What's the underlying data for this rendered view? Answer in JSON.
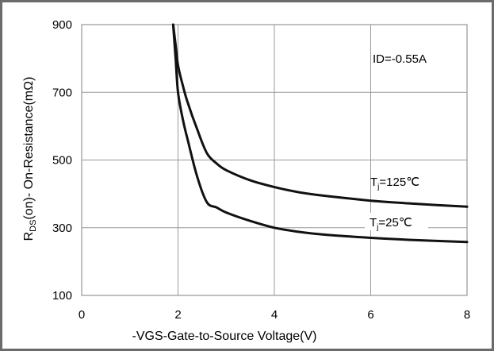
{
  "chart_data": {
    "type": "line",
    "title": "",
    "xlabel": "-VGS-Gate-to-Source  Voltage(V)",
    "ylabel_main": "R",
    "ylabel_sub": "DS",
    "ylabel_rest": "(on)- On-Resistance(mΩ)",
    "xlim": [
      0,
      8
    ],
    "ylim": [
      100,
      900
    ],
    "xticks": [
      "0",
      "2",
      "4",
      "6",
      "8"
    ],
    "yticks": [
      "100",
      "300",
      "500",
      "700",
      "900"
    ],
    "grid": true,
    "annotation": "ID=-0.55A",
    "series": [
      {
        "label_main": "T",
        "label_sub": "j",
        "label_rest": "=125℃",
        "color": "#111111",
        "x": [
          1.9,
          1.95,
          2.0,
          2.1,
          2.2,
          2.4,
          2.6,
          2.8,
          3.0,
          3.5,
          4.0,
          4.5,
          5.0,
          6.0,
          7.0,
          8.0
        ],
        "y": [
          900,
          840,
          780,
          720,
          670,
          590,
          520,
          490,
          470,
          440,
          420,
          405,
          395,
          380,
          370,
          362
        ]
      },
      {
        "label_main": "T",
        "label_sub": "j",
        "label_rest": "=25℃",
        "color": "#111111",
        "x": [
          1.9,
          1.95,
          2.0,
          2.1,
          2.2,
          2.4,
          2.6,
          2.8,
          3.0,
          3.5,
          4.0,
          4.5,
          5.0,
          6.0,
          7.0,
          8.0
        ],
        "y": [
          900,
          800,
          700,
          620,
          560,
          450,
          375,
          360,
          345,
          320,
          300,
          288,
          280,
          270,
          263,
          258
        ]
      }
    ]
  }
}
